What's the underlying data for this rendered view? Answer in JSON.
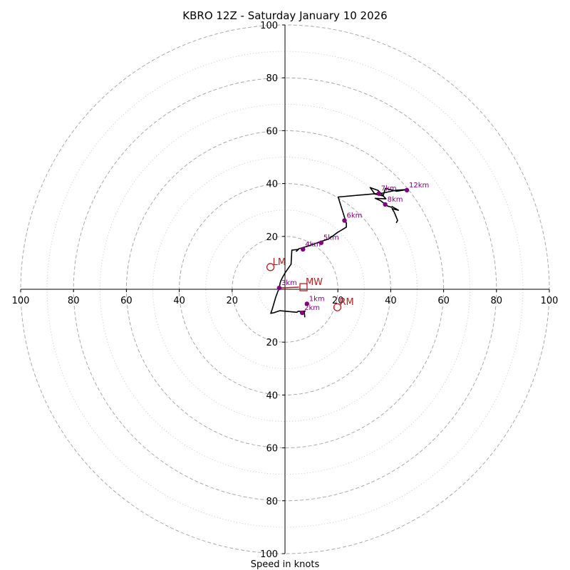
{
  "chart_data": {
    "type": "hodograph",
    "title": "KBRO 12Z - Saturday January 10 2026",
    "xlabel": "Speed in knots",
    "xlim": [
      -100,
      100
    ],
    "ylim": [
      -100,
      100
    ],
    "rings_major": [
      20,
      40,
      60,
      80,
      100
    ],
    "rings_minor": [
      10,
      30,
      50,
      70,
      90
    ],
    "x_ticks": [
      {
        "value": -100,
        "label": "100"
      },
      {
        "value": -80,
        "label": "80"
      },
      {
        "value": -60,
        "label": "60"
      },
      {
        "value": -40,
        "label": "40"
      },
      {
        "value": -20,
        "label": "20"
      },
      {
        "value": 20,
        "label": "20"
      },
      {
        "value": 40,
        "label": "40"
      },
      {
        "value": 60,
        "label": "60"
      },
      {
        "value": 80,
        "label": "80"
      },
      {
        "value": 100,
        "label": "100"
      }
    ],
    "y_ticks": [
      {
        "value": 100,
        "label": "100"
      },
      {
        "value": 80,
        "label": "80"
      },
      {
        "value": 60,
        "label": "60"
      },
      {
        "value": 40,
        "label": "40"
      },
      {
        "value": 20,
        "label": "20"
      },
      {
        "value": -20,
        "label": "20"
      },
      {
        "value": -40,
        "label": "40"
      },
      {
        "value": -60,
        "label": "60"
      },
      {
        "value": -80,
        "label": "80"
      },
      {
        "value": -100,
        "label": "100"
      }
    ],
    "trace": [
      [
        7.5,
        -10.6
      ],
      [
        7.3,
        -8.5
      ],
      [
        7.6,
        -8.2
      ],
      [
        6.4,
        -8.4
      ],
      [
        5,
        -8.3
      ],
      [
        4.5,
        -8.7
      ],
      [
        -2,
        -8.1
      ],
      [
        -4.3,
        -8.9
      ],
      [
        -5.4,
        -9.1
      ],
      [
        -4.8,
        -7.4
      ],
      [
        -3.5,
        -3
      ],
      [
        -2.2,
        0.5
      ],
      [
        -1.7,
        2.9
      ],
      [
        -1,
        4.4
      ],
      [
        0.1,
        6.3
      ],
      [
        2.3,
        9.5
      ],
      [
        2.6,
        14.8
      ],
      [
        5.1,
        15.1
      ],
      [
        4.3,
        14.4
      ],
      [
        5.3,
        15.4
      ],
      [
        6.2,
        15.6
      ],
      [
        8.9,
        16.4
      ],
      [
        13.7,
        18.1
      ],
      [
        16.5,
        19
      ],
      [
        19.9,
        21.5
      ],
      [
        23.2,
        23.5
      ],
      [
        23.2,
        25
      ],
      [
        20.1,
        34.9
      ],
      [
        37,
        36.4
      ],
      [
        42.1,
        37.5
      ],
      [
        46.1,
        37.7
      ],
      [
        42.2,
        37.1
      ],
      [
        38,
        38.2
      ],
      [
        37.1,
        35.3
      ],
      [
        34,
        36
      ],
      [
        32.2,
        38.5
      ],
      [
        35.2,
        37.4
      ],
      [
        38.2,
        34.2
      ],
      [
        34.1,
        34.4
      ],
      [
        36.2,
        33.5
      ],
      [
        38.8,
        31.5
      ],
      [
        40.4,
        31
      ],
      [
        40.5,
        31.3
      ],
      [
        42.9,
        29.9
      ],
      [
        40.5,
        30.5
      ],
      [
        41.4,
        29
      ],
      [
        42.6,
        26.1
      ],
      [
        42.1,
        25.1
      ]
    ],
    "height_markers": [
      {
        "label": "1km",
        "u": 8.3,
        "v": -5.5
      },
      {
        "label": "2km",
        "u": 6.5,
        "v": -8.9
      },
      {
        "label": "3km",
        "u": -2.2,
        "v": 0.5
      },
      {
        "label": "4km",
        "u": 6.8,
        "v": 15.1
      },
      {
        "label": "5km",
        "u": 13.7,
        "v": 17.6
      },
      {
        "label": "6km",
        "u": 22.5,
        "v": 26
      },
      {
        "label": "7km",
        "u": 35.5,
        "v": 36.2
      },
      {
        "label": "8km",
        "u": 37.9,
        "v": 32.1
      },
      {
        "label": "12km",
        "u": 46.1,
        "v": 37.5
      }
    ],
    "storm_motions": [
      {
        "label": "RM",
        "u": 19.8,
        "v": -6.8,
        "symbol": "circle"
      },
      {
        "label": "LM",
        "u": -5.5,
        "v": 8.4,
        "symbol": "circle"
      },
      {
        "label": "MW",
        "u": 7,
        "v": 0.8,
        "symbol": "square"
      }
    ],
    "mean_wind_vector": {
      "from": [
        -2.2,
        0.5
      ],
      "to": [
        5.3,
        0.8
      ]
    },
    "colors": {
      "trace": "#000000",
      "markers": "#800080",
      "storm_motion": "#b22222",
      "ring": "#aaaaaa",
      "axis": "#000000"
    }
  }
}
